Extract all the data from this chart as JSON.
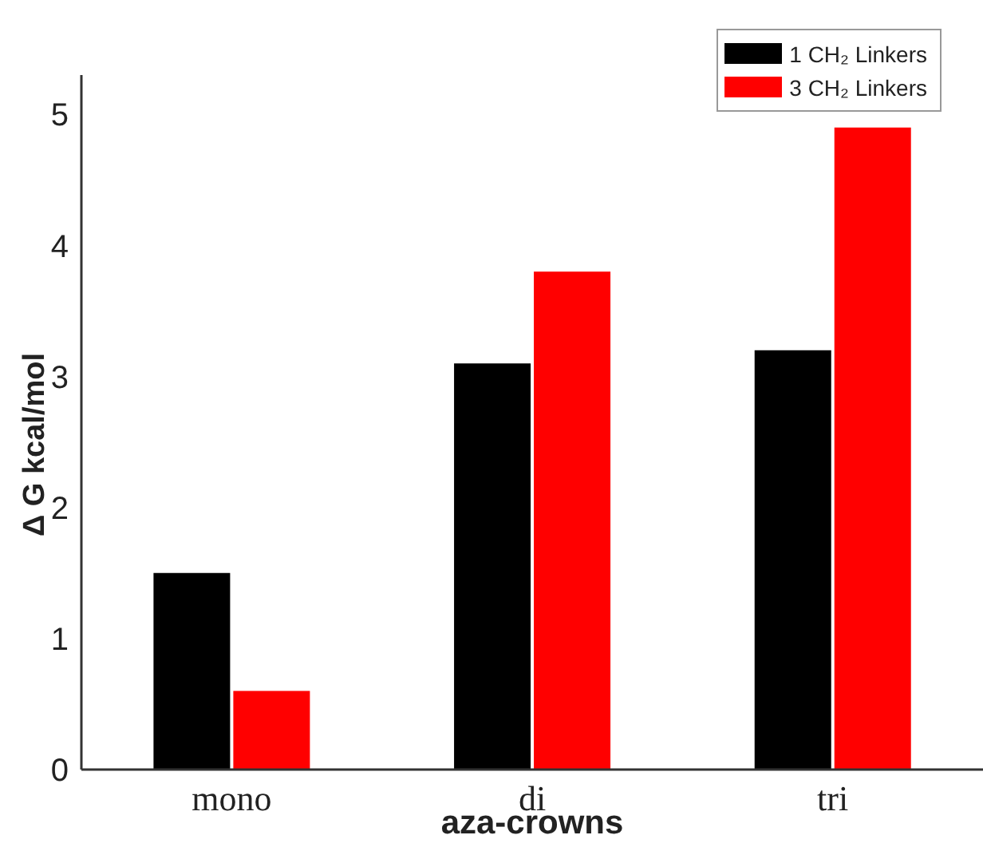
{
  "chart_data": {
    "type": "bar",
    "xlabel": "aza-crowns",
    "ylabel": "Δ G kcal/mol",
    "categories": [
      "mono",
      "di",
      "tri"
    ],
    "series": [
      {
        "name": "1 CH₂ Linkers",
        "color": "#000000",
        "values": [
          1.5,
          3.1,
          3.2
        ]
      },
      {
        "name": "3 CH₂ Linkers",
        "color": "#ff0000",
        "values": [
          0.6,
          3.8,
          4.9
        ]
      }
    ],
    "ylim": [
      0,
      5.3
    ],
    "yticks": [
      0,
      1,
      2,
      3,
      4,
      5
    ],
    "legend": "top right"
  }
}
